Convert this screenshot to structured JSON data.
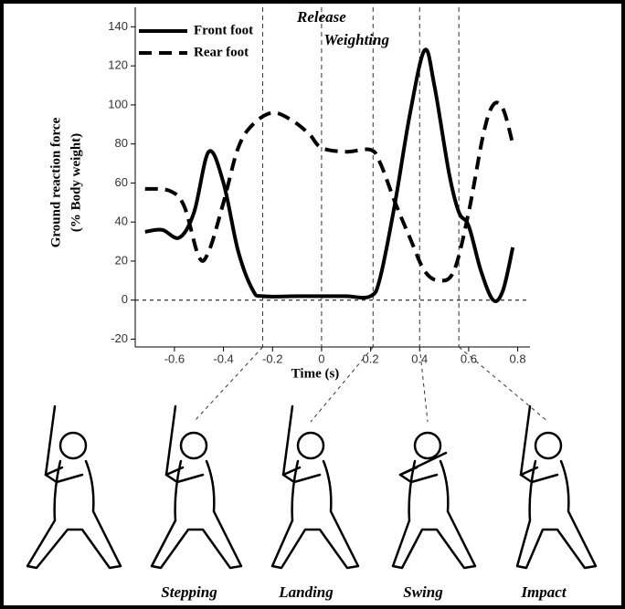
{
  "chart_data": {
    "type": "line",
    "xlabel": "Time (s)",
    "ylabel": [
      "Ground reaction force",
      "(% Body weight)"
    ],
    "xlim": [
      -0.76,
      0.85
    ],
    "ylim": [
      -24,
      150
    ],
    "xticks": [
      -0.6,
      -0.4,
      -0.2,
      0,
      0.2,
      0.4,
      0.6,
      0.8
    ],
    "yticks": [
      -20,
      0,
      20,
      40,
      60,
      80,
      100,
      120,
      140
    ],
    "legend": "upper left",
    "series": [
      {
        "name": "Front foot",
        "color": "#000000",
        "dash": false,
        "x": [
          -0.72,
          -0.65,
          -0.58,
          -0.52,
          -0.46,
          -0.4,
          -0.34,
          -0.28,
          -0.24,
          -0.1,
          0,
          0.1,
          0.2,
          0.24,
          0.3,
          0.36,
          0.42,
          0.46,
          0.52,
          0.56,
          0.6,
          0.65,
          0.7,
          0.74,
          0.78
        ],
        "values": [
          35,
          36,
          32,
          45,
          76,
          60,
          25,
          5,
          2,
          2,
          2,
          2,
          2,
          12,
          50,
          95,
          128,
          110,
          65,
          45,
          38,
          15,
          0,
          5,
          27
        ]
      },
      {
        "name": "Rear foot",
        "color": "#000000",
        "dash": true,
        "x": [
          -0.72,
          -0.62,
          -0.56,
          -0.5,
          -0.46,
          -0.4,
          -0.34,
          -0.28,
          -0.2,
          -0.12,
          -0.05,
          0,
          0.1,
          0.2,
          0.24,
          0.3,
          0.36,
          0.42,
          0.48,
          0.54,
          0.6,
          0.66,
          0.7,
          0.74,
          0.78
        ],
        "values": [
          57,
          56,
          48,
          22,
          25,
          50,
          78,
          90,
          96,
          92,
          85,
          78,
          76,
          77,
          70,
          50,
          32,
          15,
          10,
          15,
          45,
          85,
          100,
          98,
          80
        ]
      }
    ],
    "phase_lines": [
      -0.24,
      0,
      0.21,
      0.4,
      0.56
    ],
    "annotations": [
      {
        "text": "Release",
        "x": 0
      },
      {
        "text": "Weighting",
        "x": 0.21
      }
    ],
    "figure_labels": [
      "Stepping",
      "Landing",
      "Swing",
      "Impact"
    ]
  }
}
